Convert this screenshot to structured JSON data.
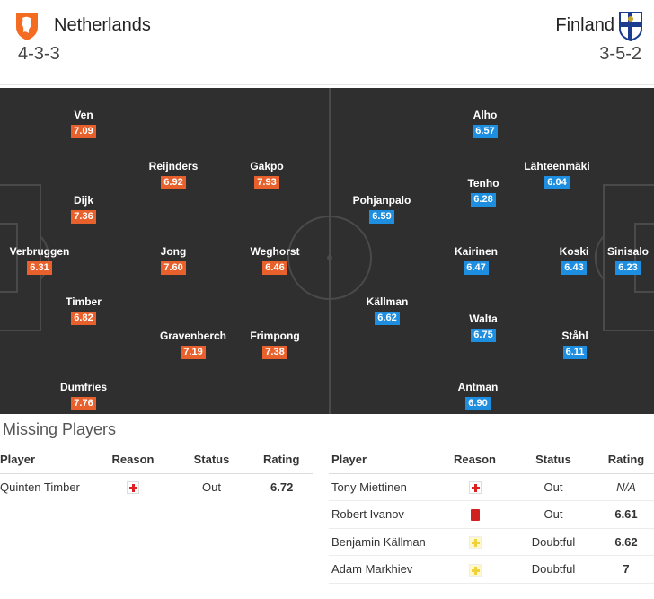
{
  "home": {
    "name": "Netherlands",
    "formation": "4-3-3",
    "logo_icon": "netherlands-lion-crest-icon",
    "color": "#f36c21"
  },
  "away": {
    "name": "Finland",
    "formation": "3-5-2",
    "logo_icon": "finland-crest-icon",
    "color": "#1e8fe0"
  },
  "lineup": {
    "home_players": [
      {
        "name": "Ven",
        "rating": "7.09"
      },
      {
        "name": "Dijk",
        "rating": "7.36"
      },
      {
        "name": "Verbruggen",
        "rating": "6.31"
      },
      {
        "name": "Timber",
        "rating": "6.82"
      },
      {
        "name": "Dumfries",
        "rating": "7.76"
      },
      {
        "name": "Reijnders",
        "rating": "6.92"
      },
      {
        "name": "Jong",
        "rating": "7.60"
      },
      {
        "name": "Gravenberch",
        "rating": "7.19"
      },
      {
        "name": "Gakpo",
        "rating": "7.93"
      },
      {
        "name": "Weghorst",
        "rating": "6.46"
      },
      {
        "name": "Frimpong",
        "rating": "7.38"
      }
    ],
    "away_players": [
      {
        "name": "Alho",
        "rating": "6.57"
      },
      {
        "name": "Tenho",
        "rating": "6.28"
      },
      {
        "name": "Kairinen",
        "rating": "6.47"
      },
      {
        "name": "Walta",
        "rating": "6.75"
      },
      {
        "name": "Antman",
        "rating": "6.90"
      },
      {
        "name": "Lähteenmäki",
        "rating": "6.04"
      },
      {
        "name": "Koski",
        "rating": "6.43"
      },
      {
        "name": "Ståhl",
        "rating": "6.11"
      },
      {
        "name": "Sinisalo",
        "rating": "6.23"
      },
      {
        "name": "Pohjanpalo",
        "rating": "6.59"
      },
      {
        "name": "Källman",
        "rating": "6.62"
      }
    ]
  },
  "missing": {
    "title": "Missing Players",
    "headers": {
      "player": "Player",
      "reason": "Reason",
      "status": "Status",
      "rating": "Rating"
    },
    "home": [
      {
        "player": "Quinten Timber",
        "reason_icon": "injury-icon",
        "status": "Out",
        "rating": "6.72"
      }
    ],
    "away": [
      {
        "player": "Tony Miettinen",
        "reason_icon": "injury-icon",
        "status": "Out",
        "rating": "N/A"
      },
      {
        "player": "Robert Ivanov",
        "reason_icon": "red-card-icon",
        "status": "Out",
        "rating": "6.61"
      },
      {
        "player": "Benjamin Källman",
        "reason_icon": "doubtful-icon",
        "status": "Doubtful",
        "rating": "6.62"
      },
      {
        "player": "Adam Markhiev",
        "reason_icon": "doubtful-icon",
        "status": "Doubtful",
        "rating": "7"
      }
    ]
  }
}
